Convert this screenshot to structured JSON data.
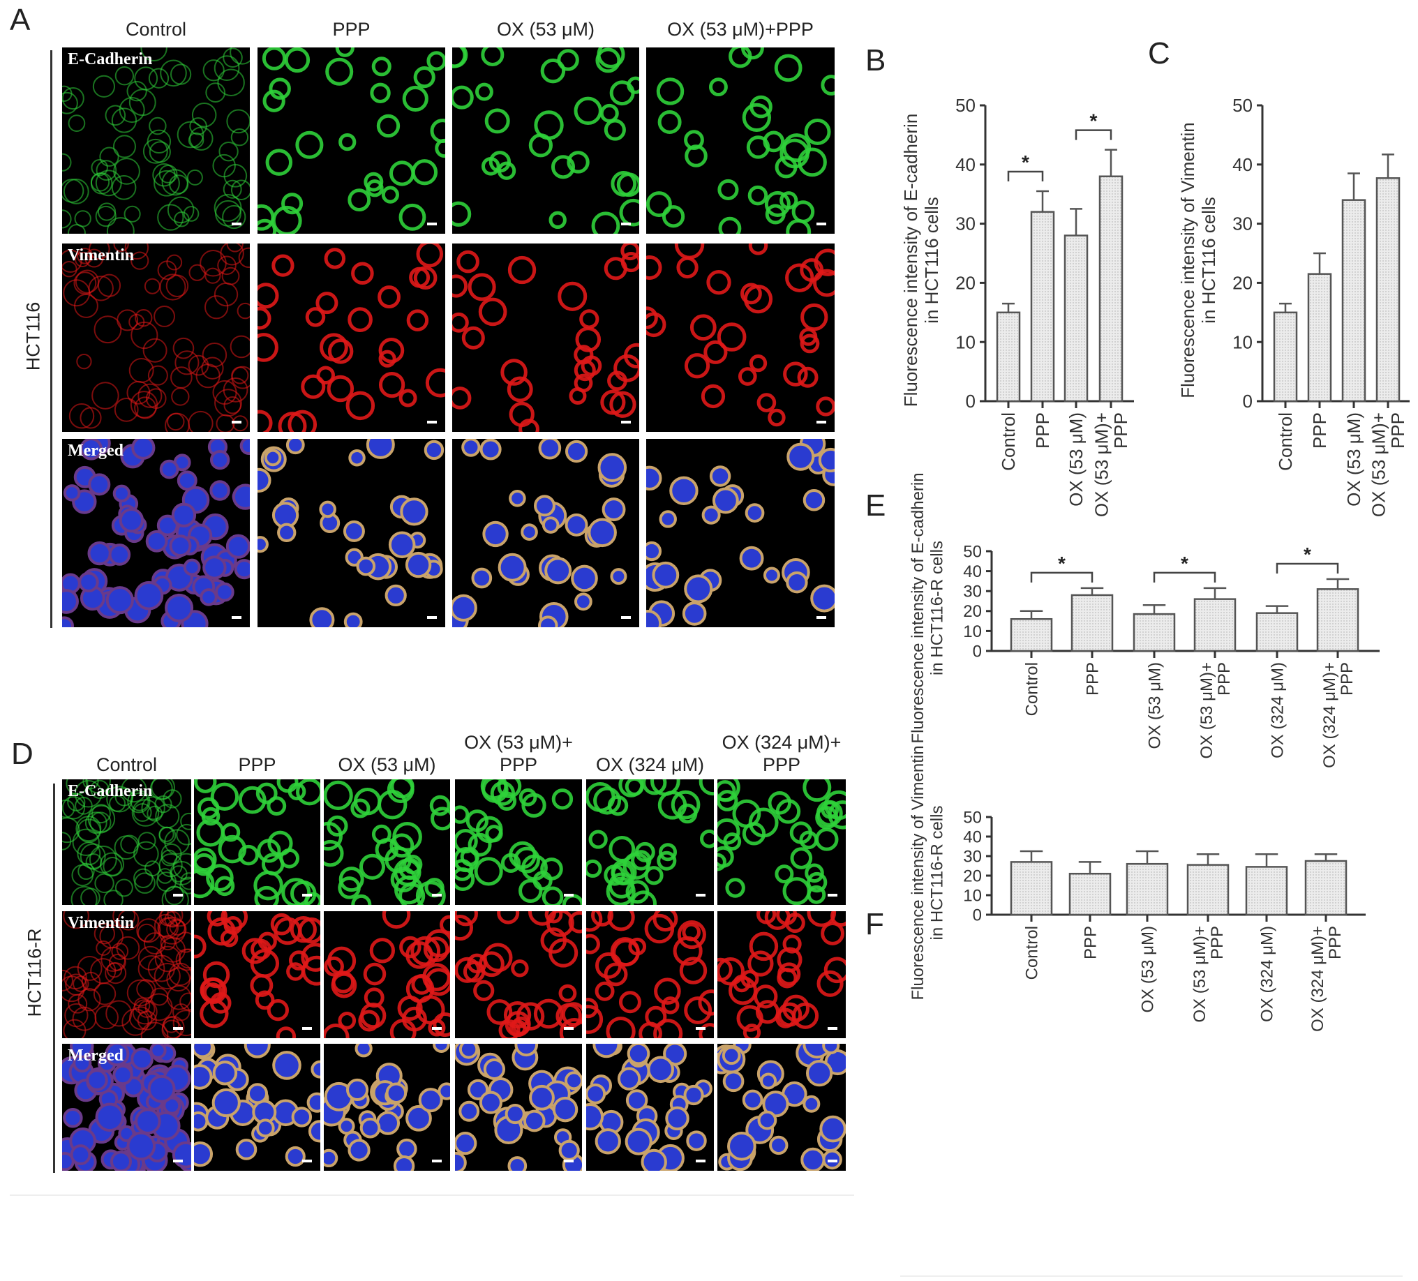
{
  "panel_letters": {
    "A": "A",
    "B": "B",
    "C": "C",
    "D": "D",
    "E": "E",
    "F": "F"
  },
  "panel_a": {
    "columns": [
      "Control",
      "PPP",
      "OX (53 μM)",
      "OX (53 μM)+PPP"
    ],
    "row_group_label": "HCT116",
    "stains": [
      "E-Cadherin",
      "Vimentin",
      "Merged"
    ]
  },
  "panel_d": {
    "columns": [
      "Control",
      "PPP",
      "OX (53 μM)",
      "OX (53 μM)+\nPPP",
      "OX (324 μM)",
      "OX (324 μM)+\nPPP"
    ],
    "row_group_label": "HCT116-R",
    "stains": [
      "E-Cadherin",
      "Vimentin",
      "Merged"
    ]
  },
  "stain_colors": {
    "E-Cadherin": "#2fd23a",
    "Vimentin": "#e01818",
    "Merged": "#3a4be0"
  },
  "chart_data": [
    {
      "panel": "B",
      "type": "bar",
      "categories": [
        "Control",
        "PPP",
        "OX (53 μM)",
        "OX (53 μM)+\nPPP"
      ],
      "values": [
        15,
        32,
        28,
        38
      ],
      "errors": [
        1.5,
        3.5,
        4.5,
        4.5
      ],
      "ylabel": "Fluorescence intensity of E-cadherin\nin HCT116 cells",
      "ylim": [
        0,
        50
      ],
      "yticks": [
        0,
        10,
        20,
        30,
        40,
        50
      ],
      "significance": [
        {
          "pair": [
            0,
            1
          ],
          "label": "*"
        },
        {
          "pair": [
            2,
            3
          ],
          "label": "*"
        }
      ]
    },
    {
      "panel": "C",
      "type": "bar",
      "categories": [
        "Control",
        "PPP",
        "OX (53 μM)",
        "OX (53 μM)+\nPPP"
      ],
      "values": [
        15,
        21.5,
        34,
        37.7
      ],
      "errors": [
        1.5,
        3.5,
        4.5,
        4
      ],
      "ylabel": "Fluorescence intensity of Vimentin\nin HCT116 cells",
      "ylim": [
        0,
        50
      ],
      "yticks": [
        0,
        10,
        20,
        30,
        40,
        50
      ],
      "significance": []
    },
    {
      "panel": "E",
      "type": "bar",
      "categories": [
        "Control",
        "PPP",
        "OX (53 μM)",
        "OX (53 μM)+\nPPP",
        "OX (324 μM)",
        "OX (324 μM)+\nPPP"
      ],
      "values": [
        16,
        28,
        18.5,
        26,
        19,
        31
      ],
      "errors": [
        4,
        3.5,
        4.5,
        5.5,
        3.5,
        5
      ],
      "ylabel": "Fluorescence intensity of E-cadherin\nin HCT116-R cells",
      "ylim": [
        0,
        50
      ],
      "yticks": [
        0,
        10,
        20,
        30,
        40,
        50
      ],
      "significance": [
        {
          "pair": [
            0,
            1
          ],
          "label": "*"
        },
        {
          "pair": [
            2,
            3
          ],
          "label": "*"
        },
        {
          "pair": [
            4,
            5
          ],
          "label": "*"
        }
      ]
    },
    {
      "panel": "F",
      "type": "bar",
      "categories": [
        "Control",
        "PPP",
        "OX (53 μM)",
        "OX (53 μM)+\nPPP",
        "OX (324 μM)",
        "OX (324 μM)+\nPPP"
      ],
      "values": [
        27,
        21,
        26,
        25.5,
        24.5,
        27.5
      ],
      "errors": [
        5.5,
        6,
        6.5,
        5.5,
        6.5,
        3.5
      ],
      "ylabel": "Fluorescence intensity of Vimentin\nin HCT116-R cells",
      "ylim": [
        0,
        50
      ],
      "yticks": [
        0,
        10,
        20,
        30,
        40,
        50
      ],
      "significance": []
    }
  ]
}
